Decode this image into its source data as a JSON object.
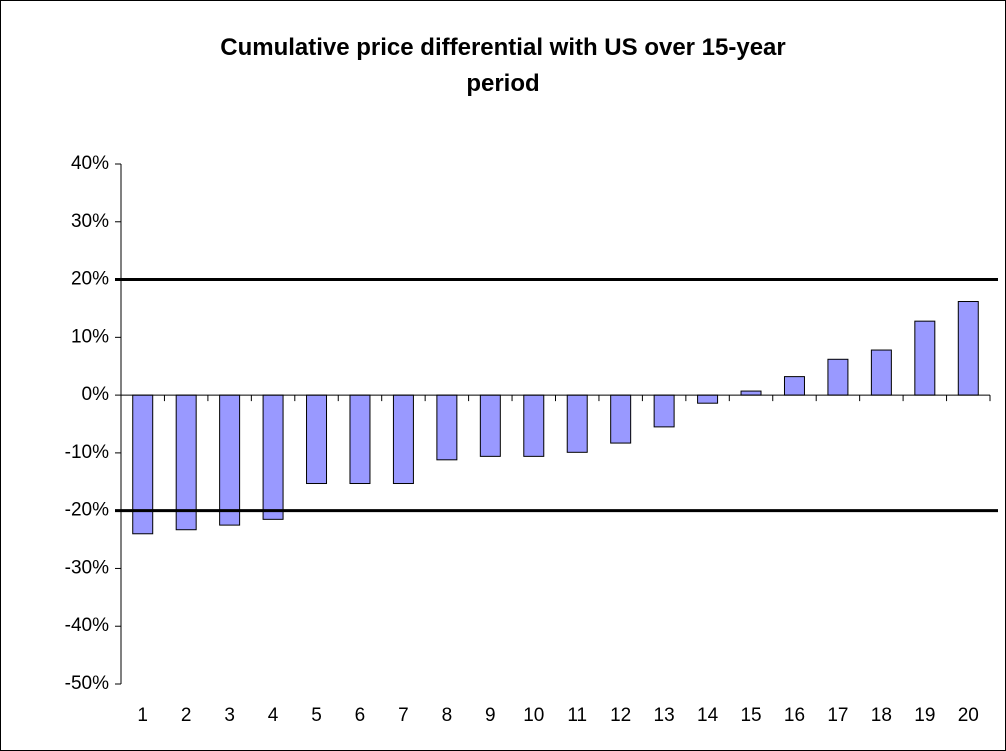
{
  "chart_data": {
    "type": "bar",
    "title": "Cumulative price differential with US over 15-year period",
    "categories": [
      1,
      2,
      3,
      4,
      5,
      6,
      7,
      8,
      9,
      10,
      11,
      12,
      13,
      14,
      15,
      16,
      17,
      18,
      19,
      20
    ],
    "values": [
      -24,
      -23.3,
      -22.5,
      -21.5,
      -15.3,
      -15.3,
      -15.3,
      -11.2,
      -10.6,
      -10.6,
      -9.9,
      -8.3,
      -5.5,
      -1.4,
      0.7,
      3.2,
      6.2,
      7.8,
      12.8,
      16.2
    ],
    "color": "#9999ff",
    "ylim": [
      -50,
      40
    ],
    "yticks": [
      {
        "value": -50,
        "label": "-50%"
      },
      {
        "value": -40,
        "label": "-40%"
      },
      {
        "value": -30,
        "label": "-30%"
      },
      {
        "value": -20,
        "label": "-20%"
      },
      {
        "value": -10,
        "label": "-10%"
      },
      {
        "value": 0,
        "label": "0%"
      },
      {
        "value": 10,
        "label": "10%"
      },
      {
        "value": 20,
        "label": "20%"
      },
      {
        "value": 30,
        "label": "30%"
      },
      {
        "value": 40,
        "label": "40%"
      }
    ],
    "reference_lines": [
      20,
      -20
    ],
    "grid": false
  }
}
